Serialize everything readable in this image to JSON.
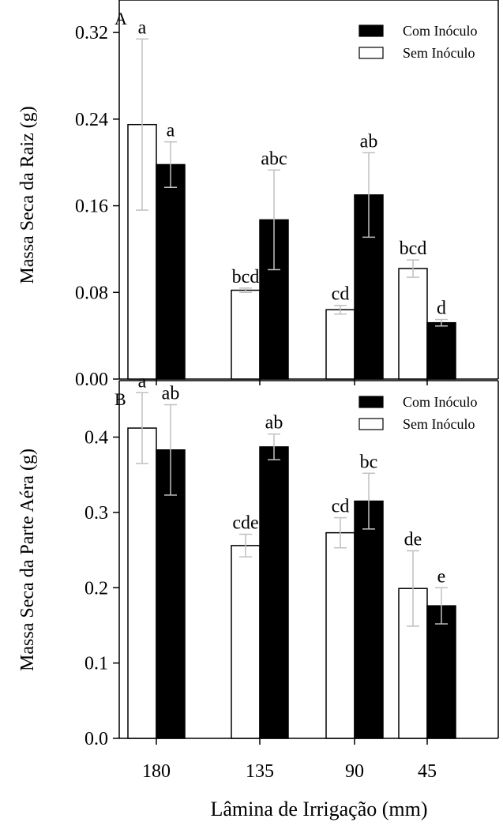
{
  "x_axis_label": "Lâmina de Irrigação  (mm)",
  "colors": {
    "com": "#000000",
    "sem": "#ffffff",
    "errorbar": "#c0c0c0"
  },
  "chart_data": [
    {
      "type": "bar",
      "panel_label": "A",
      "ylabel": "Massa Seca da Raiz (g)",
      "categories": [
        "180",
        "135",
        "90",
        "45"
      ],
      "ylim": [
        0,
        0.35
      ],
      "yticks": [
        "0.00",
        "0.08",
        "0.16",
        "0.24",
        "0.32"
      ],
      "legend_position": "top-right",
      "grid": false,
      "series": [
        {
          "name": "Com Inóculo",
          "values": [
            0.198,
            0.147,
            0.17,
            0.052
          ],
          "errors": [
            0.021,
            0.046,
            0.039,
            0.003
          ],
          "labels": [
            "a",
            "abc",
            "ab",
            "d"
          ]
        },
        {
          "name": "Sem Inóculo",
          "values": [
            0.235,
            0.082,
            0.064,
            0.102
          ],
          "errors": [
            0.079,
            0.002,
            0.004,
            0.008
          ],
          "labels": [
            "a",
            "bcd",
            "cd",
            "bcd"
          ]
        }
      ]
    },
    {
      "type": "bar",
      "panel_label": "B",
      "ylabel": "Massa Seca da Parte Aéra (g)",
      "categories": [
        "180",
        "135",
        "90",
        "45"
      ],
      "ylim": [
        0,
        0.475
      ],
      "yticks": [
        "0.0",
        "0.1",
        "0.2",
        "0.3",
        "0.4"
      ],
      "legend_position": "top-right",
      "grid": false,
      "series": [
        {
          "name": "Com Inóculo",
          "values": [
            0.383,
            0.387,
            0.315,
            0.176
          ],
          "errors": [
            0.06,
            0.017,
            0.037,
            0.024
          ],
          "labels": [
            "ab",
            "ab",
            "bc",
            "e"
          ]
        },
        {
          "name": "Sem Inóculo",
          "values": [
            0.412,
            0.256,
            0.273,
            0.199
          ],
          "errors": [
            0.047,
            0.015,
            0.02,
            0.05
          ],
          "labels": [
            "a",
            "cde",
            "cd",
            "de"
          ]
        }
      ]
    }
  ]
}
